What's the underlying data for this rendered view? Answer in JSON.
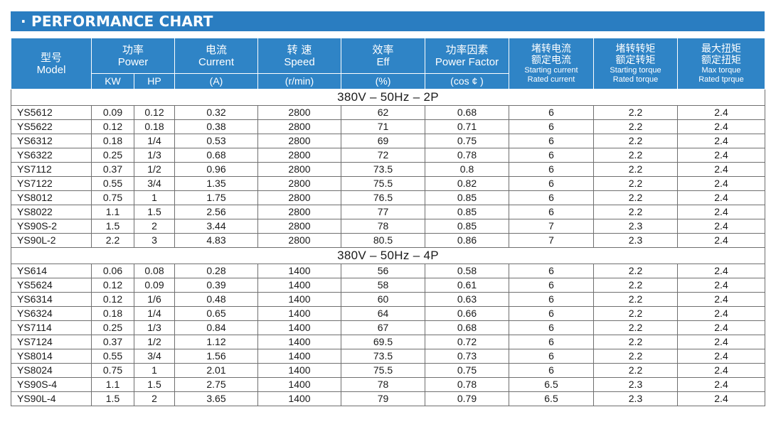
{
  "title": "· PERFORMANCE CHART",
  "headers": {
    "model": {
      "zh": "型号",
      "en": "Model"
    },
    "power": {
      "zh": "功率",
      "en": "Power",
      "kw": "KW",
      "hp": "HP"
    },
    "current": {
      "zh": "电流",
      "en": "Current",
      "unit": "(A)"
    },
    "speed": {
      "zh": "转 速",
      "en": "Speed",
      "unit": "(r/min)"
    },
    "eff": {
      "zh": "效率",
      "en": "Eff",
      "unit": "(%)"
    },
    "pf": {
      "zh": "功率因素",
      "en": "Power Factor",
      "unit": "(cos ¢ )"
    },
    "starting_current": {
      "zh1": "堵转电流",
      "zh2": "额定电流",
      "en1": "Starting current",
      "en2": "Rated current"
    },
    "starting_torque": {
      "zh1": "堵转转矩",
      "zh2": "额定转矩",
      "en1": "Starting torque",
      "en2": "Rated torque"
    },
    "max_torque": {
      "zh1": "最大扭矩",
      "zh2": "额定扭矩",
      "en1": "Max torque",
      "en2": "Rated tprque"
    }
  },
  "sections": [
    {
      "label": "380V – 50Hz – 2P",
      "rows": [
        [
          "YS5612",
          "0.09",
          "0.12",
          "0.32",
          "2800",
          "62",
          "0.68",
          "6",
          "2.2",
          "2.4"
        ],
        [
          "YS5622",
          "0.12",
          "0.18",
          "0.38",
          "2800",
          "71",
          "0.71",
          "6",
          "2.2",
          "2.4"
        ],
        [
          "YS6312",
          "0.18",
          "1/4",
          "0.53",
          "2800",
          "69",
          "0.75",
          "6",
          "2.2",
          "2.4"
        ],
        [
          "YS6322",
          "0.25",
          "1/3",
          "0.68",
          "2800",
          "72",
          "0.78",
          "6",
          "2.2",
          "2.4"
        ],
        [
          "YS7112",
          "0.37",
          "1/2",
          "0.96",
          "2800",
          "73.5",
          "0.8",
          "6",
          "2.2",
          "2.4"
        ],
        [
          "YS7122",
          "0.55",
          "3/4",
          "1.35",
          "2800",
          "75.5",
          "0.82",
          "6",
          "2.2",
          "2.4"
        ],
        [
          "YS8012",
          "0.75",
          "1",
          "1.75",
          "2800",
          "76.5",
          "0.85",
          "6",
          "2.2",
          "2.4"
        ],
        [
          "YS8022",
          "1.1",
          "1.5",
          "2.56",
          "2800",
          "77",
          "0.85",
          "6",
          "2.2",
          "2.4"
        ],
        [
          "YS90S-2",
          "1.5",
          "2",
          "3.44",
          "2800",
          "78",
          "0.85",
          "7",
          "2.3",
          "2.4"
        ],
        [
          "YS90L-2",
          "2.2",
          "3",
          "4.83",
          "2800",
          "80.5",
          "0.86",
          "7",
          "2.3",
          "2.4"
        ]
      ]
    },
    {
      "label": "380V – 50Hz – 4P",
      "rows": [
        [
          "YS614",
          "0.06",
          "0.08",
          "0.28",
          "1400",
          "56",
          "0.58",
          "6",
          "2.2",
          "2.4"
        ],
        [
          "YS5624",
          "0.12",
          "0.09",
          "0.39",
          "1400",
          "58",
          "0.61",
          "6",
          "2.2",
          "2.4"
        ],
        [
          "YS6314",
          "0.12",
          "1/6",
          "0.48",
          "1400",
          "60",
          "0.63",
          "6",
          "2.2",
          "2.4"
        ],
        [
          "YS6324",
          "0.18",
          "1/4",
          "0.65",
          "1400",
          "64",
          "0.66",
          "6",
          "2.2",
          "2.4"
        ],
        [
          "YS7114",
          "0.25",
          "1/3",
          "0.84",
          "1400",
          "67",
          "0.68",
          "6",
          "2.2",
          "2.4"
        ],
        [
          "YS7124",
          "0.37",
          "1/2",
          "1.12",
          "1400",
          "69.5",
          "0.72",
          "6",
          "2.2",
          "2.4"
        ],
        [
          "YS8014",
          "0.55",
          "3/4",
          "1.56",
          "1400",
          "73.5",
          "0.73",
          "6",
          "2.2",
          "2.4"
        ],
        [
          "YS8024",
          "0.75",
          "1",
          "2.01",
          "1400",
          "75.5",
          "0.75",
          "6",
          "2.2",
          "2.4"
        ],
        [
          "YS90S-4",
          "1.1",
          "1.5",
          "2.75",
          "1400",
          "78",
          "0.78",
          "6.5",
          "2.3",
          "2.4"
        ],
        [
          "YS90L-4",
          "1.5",
          "2",
          "3.65",
          "1400",
          "79",
          "0.79",
          "6.5",
          "2.3",
          "2.4"
        ]
      ]
    }
  ],
  "colors": {
    "header_bg": "#2f84c6",
    "title_bg": "#2a7dc1",
    "header_text": "#ffffff"
  }
}
